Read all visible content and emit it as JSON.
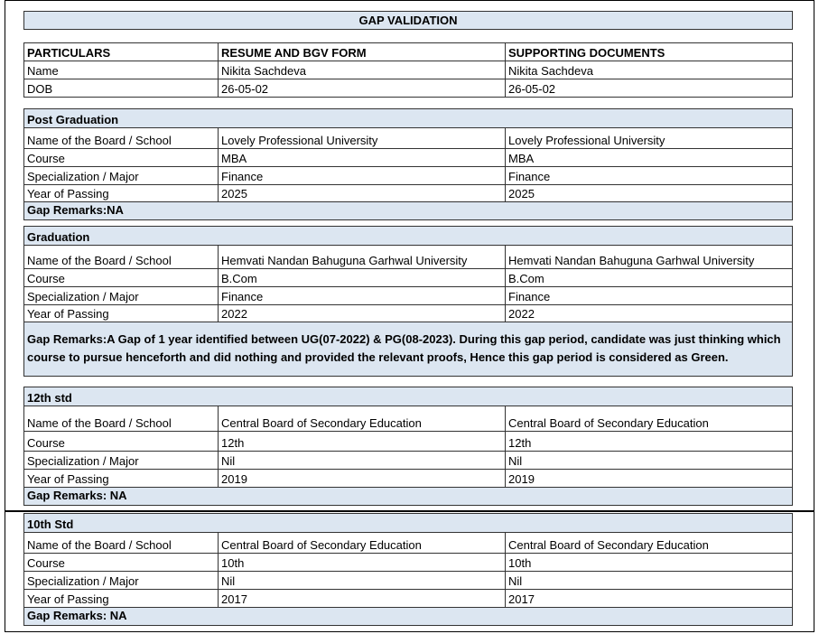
{
  "title": "GAP VALIDATION",
  "header": {
    "columns": [
      "PARTICULARS",
      "RESUME AND BGV FORM",
      "SUPPORTING DOCUMENTS"
    ],
    "rows": [
      [
        "Name",
        "Nikita Sachdeva",
        "Nikita Sachdeva"
      ],
      [
        "DOB",
        "26-05-02",
        "26-05-02"
      ]
    ]
  },
  "sections": [
    {
      "heading": "Post Graduation",
      "rows": [
        [
          "Name of the Board / School",
          "Lovely Professional University",
          "Lovely Professional University"
        ],
        [
          "Course",
          "MBA",
          "MBA"
        ],
        [
          "Specialization / Major",
          "Finance",
          "Finance"
        ],
        [
          "Year of Passing",
          "2025",
          "2025"
        ]
      ],
      "remarks": "Gap Remarks:NA"
    },
    {
      "heading": "Graduation",
      "rows": [
        [
          "Name of the Board / School",
          "Hemvati Nandan Bahuguna Garhwal University",
          "Hemvati Nandan Bahuguna Garhwal University"
        ],
        [
          "Course",
          "B.Com",
          "B.Com"
        ],
        [
          "Specialization / Major",
          "Finance",
          "Finance"
        ],
        [
          "Year of Passing",
          "2022",
          "2022"
        ]
      ],
      "remarks": "Gap Remarks:A Gap of 1 year identified between UG(07-2022) & PG(08-2023). During this gap period, candidate was just thinking which course to pursue henceforth and did nothing and provided the relevant proofs, Hence this gap period is considered as Green."
    },
    {
      "heading": "12th std",
      "rows": [
        [
          "Name of the Board / School",
          "Central Board of Secondary Education",
          "Central Board of Secondary Education"
        ],
        [
          "Course",
          "12th",
          "12th"
        ],
        [
          "Specialization / Major",
          "Nil",
          "Nil"
        ],
        [
          "Year of Passing",
          "2019",
          "2019"
        ]
      ],
      "remarks": "Gap Remarks: NA"
    },
    {
      "heading": "10th Std",
      "rows": [
        [
          "Name of the Board / School",
          "Central Board of Secondary Education",
          "Central Board of Secondary Education"
        ],
        [
          "Course",
          "10th",
          "10th"
        ],
        [
          "Specialization / Major",
          "Nil",
          "Nil"
        ],
        [
          "Year of Passing",
          "2017",
          "2017"
        ]
      ],
      "remarks": "Gap Remarks: NA"
    }
  ]
}
